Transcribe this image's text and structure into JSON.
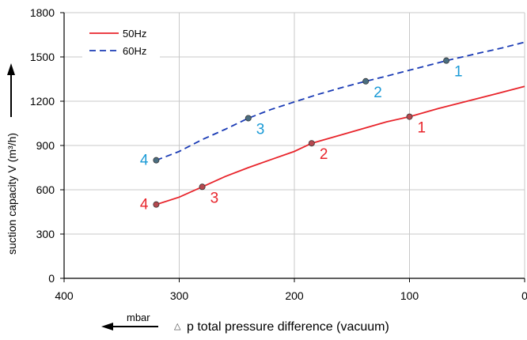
{
  "chart_data": {
    "type": "line",
    "xlabel": "p total pressure difference (vacuum)",
    "xlabel_prefix": "△",
    "xunit": "mbar",
    "ylabel": "suction capacity V (m³/h)",
    "xlim": [
      400,
      0
    ],
    "ylim": [
      0,
      1800
    ],
    "x_reversed": true,
    "xticks": [
      400,
      300,
      200,
      100,
      0
    ],
    "yticks": [
      0,
      300,
      600,
      900,
      1200,
      1500,
      1800
    ],
    "grid": true,
    "legend_position": "top-left",
    "series": [
      {
        "name": "50Hz",
        "color": "#e8242b",
        "line_style": "solid",
        "x": [
          320,
          300,
          280,
          260,
          240,
          220,
          200,
          185,
          160,
          140,
          120,
          100,
          75,
          50,
          25,
          0
        ],
        "y": [
          500,
          550,
          620,
          690,
          750,
          805,
          860,
          915,
          970,
          1015,
          1060,
          1095,
          1150,
          1200,
          1250,
          1300
        ],
        "points": [
          {
            "label": "1",
            "x": 100,
            "y": 1095
          },
          {
            "label": "2",
            "x": 185,
            "y": 915
          },
          {
            "label": "3",
            "x": 280,
            "y": 620
          },
          {
            "label": "4",
            "x": 320,
            "y": 500
          }
        ]
      },
      {
        "name": "60Hz",
        "color": "#1a3bb5",
        "line_style": "dashed",
        "x": [
          320,
          300,
          280,
          260,
          240,
          220,
          200,
          180,
          160,
          138,
          120,
          100,
          68,
          40,
          20,
          0
        ],
        "y": [
          800,
          860,
          940,
          1010,
          1085,
          1145,
          1195,
          1245,
          1290,
          1335,
          1370,
          1410,
          1475,
          1525,
          1560,
          1600
        ],
        "points": [
          {
            "label": "1",
            "x": 68,
            "y": 1475
          },
          {
            "label": "2",
            "x": 138,
            "y": 1335
          },
          {
            "label": "3",
            "x": 240,
            "y": 1085
          },
          {
            "label": "4",
            "x": 320,
            "y": 800
          }
        ]
      }
    ],
    "point_label_colors": {
      "50Hz": "#e8242b",
      "60Hz": "#1a9ad6"
    },
    "marker_colors": {
      "50Hz": "#b5494f",
      "60Hz": "#4a6e80"
    }
  }
}
